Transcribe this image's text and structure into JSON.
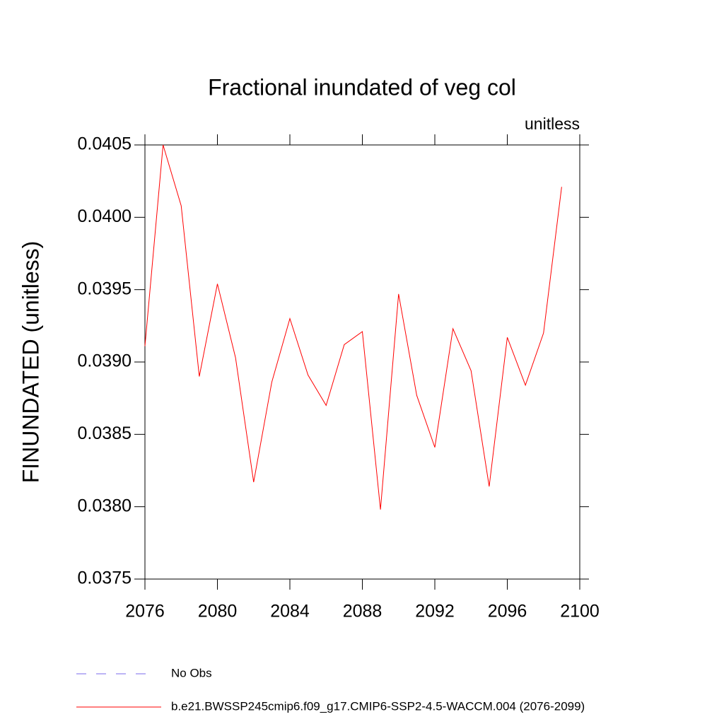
{
  "chart_data": {
    "type": "line",
    "title": "Fractional inundated of veg col",
    "subtitle": "unitless",
    "y_label": "FINUNDATED  (unitless)",
    "x": [
      2076,
      2077,
      2078,
      2079,
      2080,
      2081,
      2082,
      2083,
      2084,
      2085,
      2086,
      2087,
      2088,
      2089,
      2090,
      2091,
      2092,
      2093,
      2094,
      2095,
      2096,
      2097,
      2098,
      2099
    ],
    "series": [
      {
        "name": "b.e21.BWSSP245cmip6.f09_g17.CMIP6-SSP2-4.5-WACCM.004 (2076-2099)",
        "color": "#ff0000",
        "values": [
          0.03911,
          0.0405,
          0.04008,
          0.0389,
          0.03954,
          0.03903,
          0.03817,
          0.03886,
          0.0393,
          0.03891,
          0.0387,
          0.03912,
          0.03921,
          0.03798,
          0.03947,
          0.03877,
          0.03841,
          0.03923,
          0.03894,
          0.03814,
          0.03917,
          0.03884,
          0.0392,
          0.04021
        ]
      }
    ],
    "reference": {
      "name": "No Obs",
      "color": "#7b68ee"
    },
    "xlim": [
      2076,
      2100
    ],
    "xticks": [
      2076,
      2080,
      2084,
      2088,
      2092,
      2096,
      2100
    ],
    "ylim": [
      0.0375,
      0.0405
    ],
    "yticks": [
      0.0375,
      0.038,
      0.0385,
      0.039,
      0.0395,
      0.04,
      0.0405
    ],
    "ytick_labels": [
      "0.0375",
      "0.0380",
      "0.0385",
      "0.0390",
      "0.0395",
      "0.0400",
      "0.0405"
    ]
  }
}
